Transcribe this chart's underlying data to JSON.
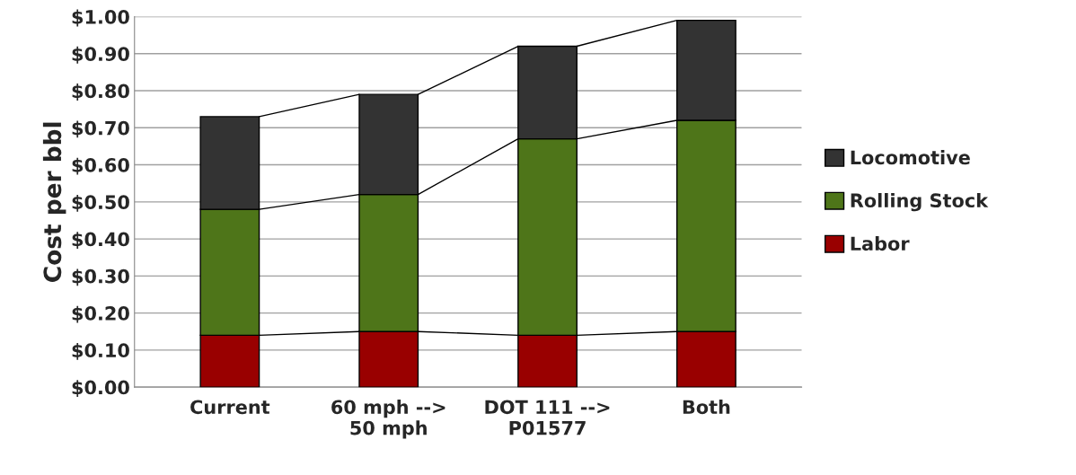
{
  "chart_data": {
    "type": "bar",
    "stacked": true,
    "ylabel": "Cost per bbl",
    "categories": [
      "Current",
      "60 mph -->\n50 mph",
      "DOT 111 -->\nP01577",
      "Both"
    ],
    "series": [
      {
        "name": "Labor",
        "color": "#990000",
        "values": [
          0.14,
          0.15,
          0.14,
          0.15
        ]
      },
      {
        "name": "Rolling Stock",
        "color": "#4e7519",
        "values": [
          0.34,
          0.37,
          0.53,
          0.57
        ]
      },
      {
        "name": "Locomotive",
        "color": "#333333",
        "values": [
          0.25,
          0.27,
          0.25,
          0.27
        ]
      }
    ],
    "ylim": [
      0,
      1
    ],
    "yticks": [
      {
        "value": 0,
        "label": "$0.00"
      },
      {
        "value": 0.1,
        "label": "$0.10"
      },
      {
        "value": 0.2,
        "label": "$0.20"
      },
      {
        "value": 0.3,
        "label": "$0.30"
      },
      {
        "value": 0.4,
        "label": "$0.40"
      },
      {
        "value": 0.5,
        "label": "$0.50"
      },
      {
        "value": 0.6,
        "label": "$0.60"
      },
      {
        "value": 0.7,
        "label": "$0.70"
      },
      {
        "value": 0.8,
        "label": "$0.80"
      },
      {
        "value": 0.9,
        "label": "$0.90"
      },
      {
        "value": 1,
        "label": "$1.00"
      }
    ],
    "grid": "y",
    "legend": "right"
  }
}
